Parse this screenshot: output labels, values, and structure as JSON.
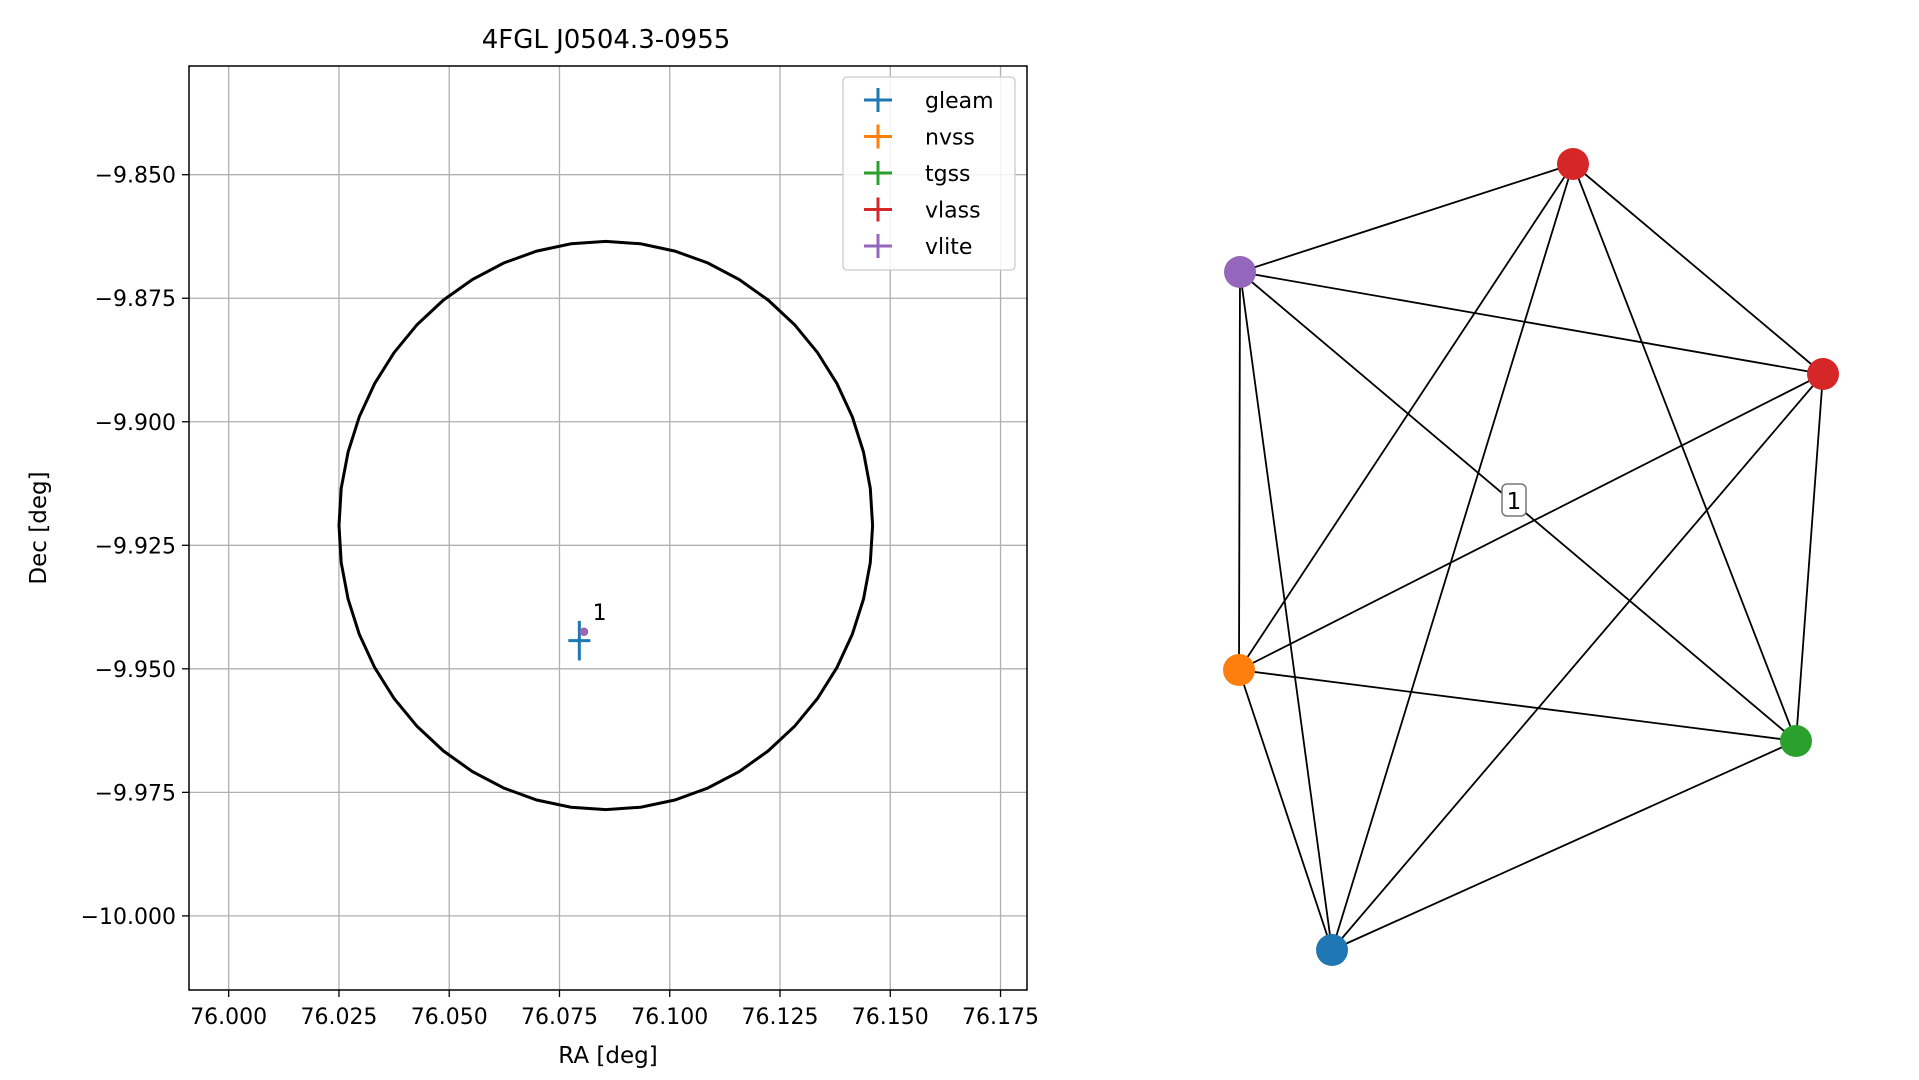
{
  "chart_data": [
    {
      "type": "scatter",
      "title": "4FGL J0504.3-0955",
      "xlabel": "RA [deg]",
      "ylabel": "Dec [deg]",
      "xlim": [
        75.991,
        76.181
      ],
      "ylim": [
        -10.015,
        -9.828
      ],
      "xticks": [
        "76.000",
        "76.025",
        "76.050",
        "76.075",
        "76.100",
        "76.125",
        "76.150",
        "76.175"
      ],
      "xtick_values": [
        76.0,
        76.025,
        76.05,
        76.075,
        76.1,
        76.125,
        76.15,
        76.175
      ],
      "yticks": [
        "−9.850",
        "−9.875",
        "−9.900",
        "−9.925",
        "−9.950",
        "−9.975",
        "−10.000"
      ],
      "ytick_values": [
        -9.85,
        -9.875,
        -9.9,
        -9.925,
        -9.95,
        -9.975,
        -10.0
      ],
      "grid": true,
      "legend_position": "top-right",
      "series": [
        {
          "name": "gleam",
          "color": "#1f77b4",
          "x": 76.0795,
          "y": -9.9443,
          "xerr": 0.0025,
          "yerr": 0.004
        },
        {
          "name": "nvss",
          "color": "#ff7f0e",
          "x": 76.0805,
          "y": -9.9425,
          "xerr": 0.0003,
          "yerr": 0.0003
        },
        {
          "name": "tgss",
          "color": "#2ca02c",
          "x": 76.0805,
          "y": -9.9425,
          "xerr": 0.0003,
          "yerr": 0.0003
        },
        {
          "name": "vlass",
          "color": "#d62728",
          "x": 76.0806,
          "y": -9.9425,
          "xerr": 0.0002,
          "yerr": 0.0002
        },
        {
          "name": "vlite",
          "color": "#9467bd",
          "x": 76.0805,
          "y": -9.9425,
          "xerr": 0.0003,
          "yerr": 0.0003
        }
      ],
      "annotations": [
        {
          "text": "1",
          "x": 76.0825,
          "y": -9.9385
        }
      ],
      "ellipse": {
        "center": [
          76.0855,
          -9.921
        ],
        "ra_semi_axis": 0.0605,
        "dec_semi_axis": 0.0575,
        "color": "#000000"
      }
    },
    {
      "type": "network",
      "label_box": "1",
      "nodes": [
        {
          "id": "vlass_a",
          "color": "#d62728"
        },
        {
          "id": "vlite",
          "color": "#9467bd"
        },
        {
          "id": "vlass_b",
          "color": "#d62728"
        },
        {
          "id": "nvss",
          "color": "#ff7f0e"
        },
        {
          "id": "tgss",
          "color": "#2ca02c"
        },
        {
          "id": "gleam",
          "color": "#1f77b4"
        }
      ],
      "edges": "complete"
    }
  ]
}
